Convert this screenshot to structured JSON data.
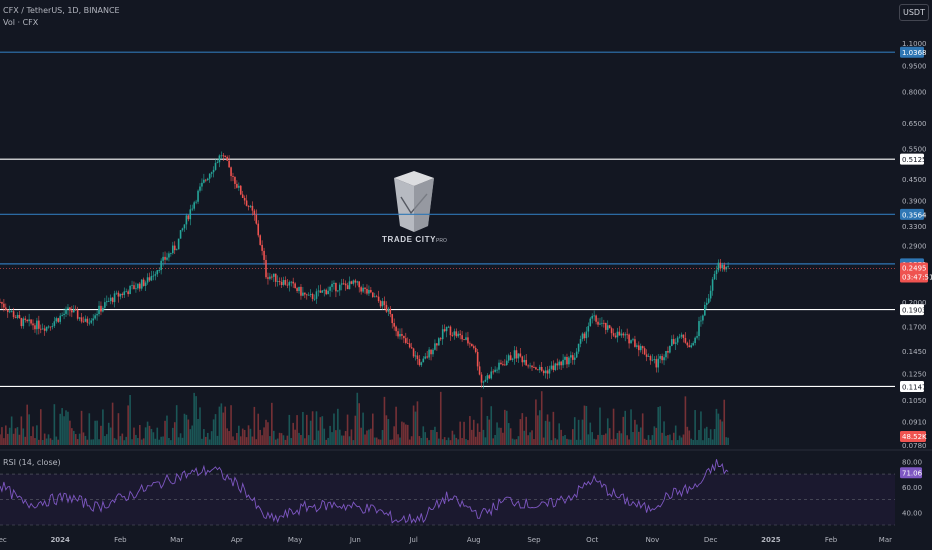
{
  "header": {
    "symbol_line": "CFX / TetherUS, 1D, BINANCE",
    "volume_label": "Vol · CFX",
    "currency_button": "USDT"
  },
  "watermark": {
    "brand": "TRADE CITY",
    "sub": "PRO"
  },
  "colors": {
    "background": "#131722",
    "up": "#26a69a",
    "down": "#ef5350",
    "blue_level": "#2f77b5",
    "white_level": "#ffffff",
    "rsi_line": "#7e57c2",
    "rsi_band": "#1e1a33",
    "grid": "#262a35",
    "axis_text": "#b2b5be"
  },
  "chart_data": {
    "type": "candlestick",
    "title": "CFX / TetherUS, 1D, BINANCE",
    "scale": "log",
    "price_axis": {
      "range": [
        0.078,
        1.2
      ],
      "tick_labels": [
        "1.1000",
        "0.9500",
        "0.8000",
        "0.6500",
        "0.5500",
        "0.4500",
        "0.3900",
        "0.3300",
        "0.2900",
        "0.2000",
        "0.1700",
        "0.1450",
        "0.1250",
        "0.1050",
        "0.0910",
        "0.0780"
      ]
    },
    "horizontal_levels": [
      {
        "value": 1.0368,
        "label": "1.0368",
        "style": "blue"
      },
      {
        "value": 0.5125,
        "label": "0.5125",
        "style": "white"
      },
      {
        "value": 0.3564,
        "label": "0.3564",
        "style": "blue"
      },
      {
        "value": 0.2572,
        "label": "0.2572",
        "style": "blue"
      },
      {
        "value": 0.1903,
        "label": "0.1903",
        "style": "white"
      },
      {
        "value": 0.1147,
        "label": "0.1147",
        "style": "white"
      }
    ],
    "last_price": {
      "value": "0.2495",
      "countdown": "03:47:51"
    },
    "volume_badge": "48.52K",
    "x_axis": {
      "labels": [
        "Dec",
        "2024",
        "Feb",
        "Mar",
        "Apr",
        "May",
        "Jun",
        "Jul",
        "Aug",
        "Sep",
        "Oct",
        "Nov",
        "Dec",
        "2025",
        "Feb",
        "Mar"
      ],
      "start_date": "2023-12-01",
      "end_date": "2025-03-25"
    },
    "price_path": [
      [
        "2023-12-01",
        0.2
      ],
      [
        "2023-12-12",
        0.175
      ],
      [
        "2023-12-25",
        0.17
      ],
      [
        "2024-01-06",
        0.19
      ],
      [
        "2024-01-14",
        0.175
      ],
      [
        "2024-01-28",
        0.205
      ],
      [
        "2024-02-15",
        0.23
      ],
      [
        "2024-03-01",
        0.29
      ],
      [
        "2024-03-12",
        0.41
      ],
      [
        "2024-03-24",
        0.53
      ],
      [
        "2024-04-02",
        0.42
      ],
      [
        "2024-04-10",
        0.35
      ],
      [
        "2024-04-16",
        0.24
      ],
      [
        "2024-04-28",
        0.225
      ],
      [
        "2024-05-08",
        0.205
      ],
      [
        "2024-05-20",
        0.22
      ],
      [
        "2024-06-01",
        0.225
      ],
      [
        "2024-06-16",
        0.195
      ],
      [
        "2024-06-24",
        0.16
      ],
      [
        "2024-07-05",
        0.132
      ],
      [
        "2024-07-18",
        0.168
      ],
      [
        "2024-08-01",
        0.15
      ],
      [
        "2024-08-05",
        0.118
      ],
      [
        "2024-08-22",
        0.142
      ],
      [
        "2024-09-06",
        0.126
      ],
      [
        "2024-09-22",
        0.14
      ],
      [
        "2024-10-01",
        0.18
      ],
      [
        "2024-10-10",
        0.165
      ],
      [
        "2024-10-22",
        0.155
      ],
      [
        "2024-11-03",
        0.133
      ],
      [
        "2024-11-14",
        0.16
      ],
      [
        "2024-11-22",
        0.15
      ],
      [
        "2024-11-29",
        0.2
      ],
      [
        "2024-12-05",
        0.255
      ],
      [
        "2024-12-10",
        0.2495
      ]
    ],
    "rsi": {
      "label": "RSI (14, close)",
      "value_badge": "71.06",
      "range": [
        30,
        85
      ],
      "tick_labels": [
        "80.00",
        "60.00",
        "40.00"
      ],
      "bands": [
        30,
        50,
        70
      ],
      "path": [
        [
          "2023-12-01",
          62
        ],
        [
          "2023-12-14",
          46
        ],
        [
          "2024-01-05",
          52
        ],
        [
          "2024-01-20",
          44
        ],
        [
          "2024-02-10",
          56
        ],
        [
          "2024-03-01",
          68
        ],
        [
          "2024-03-20",
          74
        ],
        [
          "2024-04-05",
          58
        ],
        [
          "2024-04-14",
          38
        ],
        [
          "2024-04-20",
          34
        ],
        [
          "2024-05-06",
          44
        ],
        [
          "2024-05-22",
          46
        ],
        [
          "2024-06-12",
          42
        ],
        [
          "2024-06-22",
          34
        ],
        [
          "2024-07-06",
          36
        ],
        [
          "2024-07-18",
          52
        ],
        [
          "2024-08-05",
          38
        ],
        [
          "2024-08-18",
          50
        ],
        [
          "2024-09-05",
          44
        ],
        [
          "2024-09-22",
          54
        ],
        [
          "2024-10-01",
          66
        ],
        [
          "2024-10-14",
          52
        ],
        [
          "2024-10-30",
          42
        ],
        [
          "2024-11-10",
          54
        ],
        [
          "2024-11-24",
          60
        ],
        [
          "2024-12-04",
          78
        ],
        [
          "2024-12-10",
          71
        ]
      ]
    },
    "legend": "none",
    "grid": false
  }
}
